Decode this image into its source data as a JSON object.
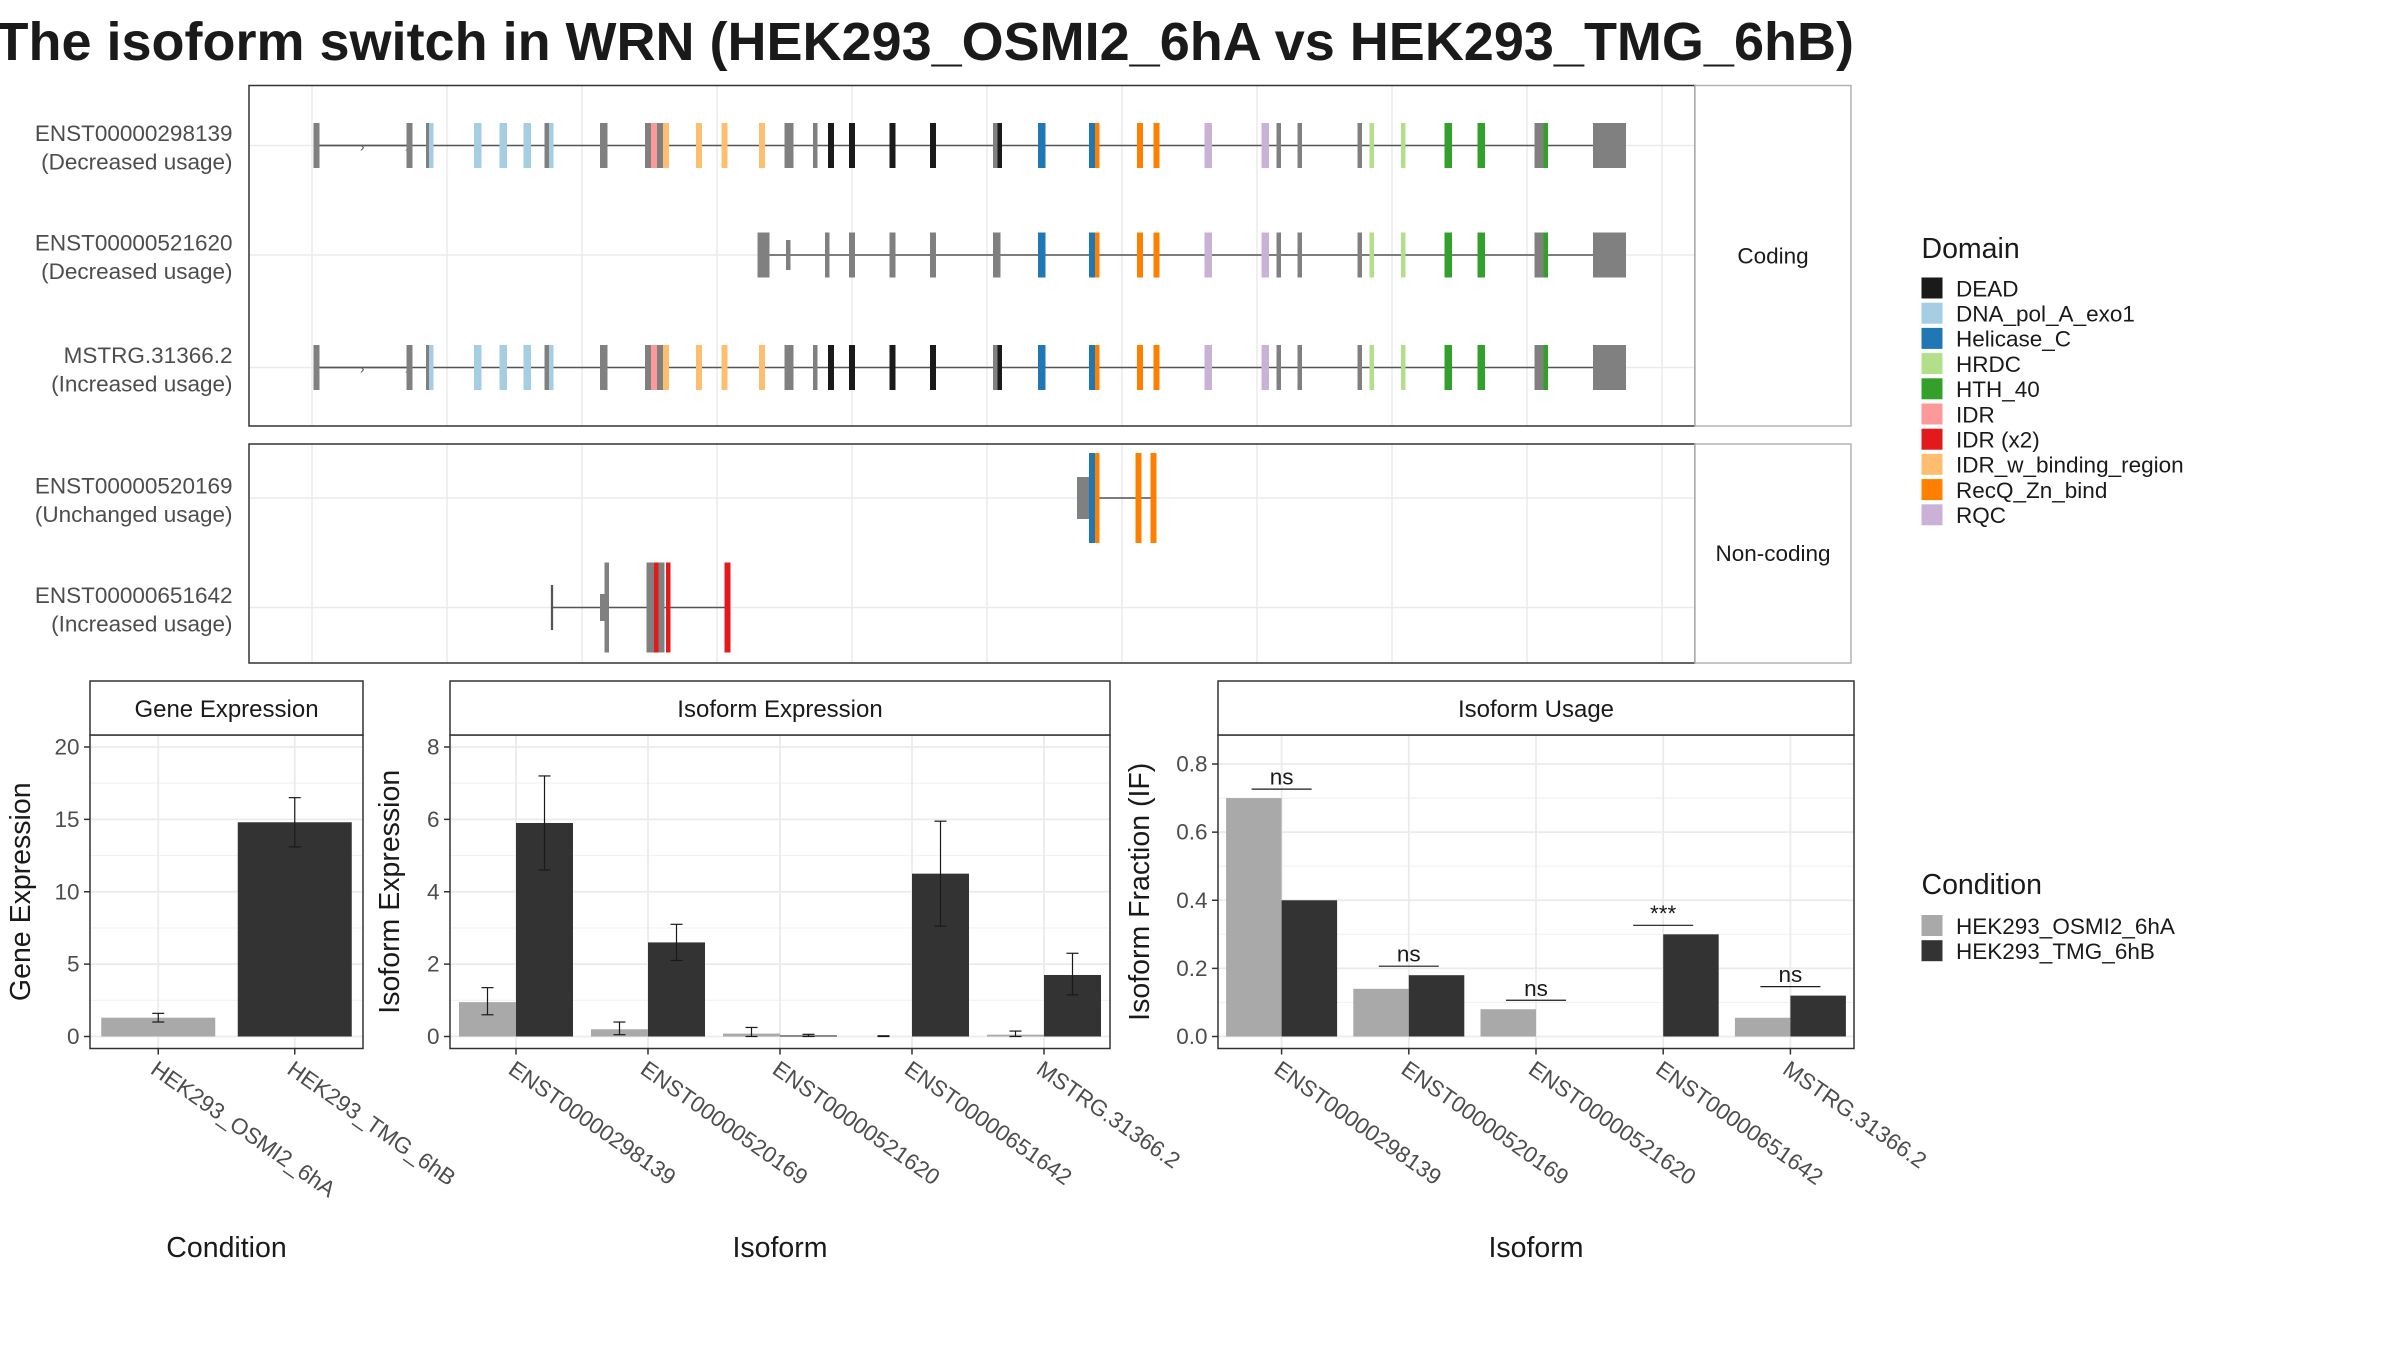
{
  "chart_data": [
    {
      "type": "table",
      "title": "The isoform switch in WRN (HEK293_OSMI2_6hA vs HEK293_TMG_6hB)",
      "panels": [
        {
          "strip": "Coding",
          "isoforms": [
            {
              "id": "ENST00000298139",
              "usage": "(Decreased usage)",
              "variant": "full"
            },
            {
              "id": "ENST00000521620",
              "usage": "(Decreased usage)",
              "variant": "short"
            },
            {
              "id": "MSTRG.31366.2",
              "usage": "(Increased usage)",
              "variant": "full"
            }
          ]
        },
        {
          "strip": "Non-coding",
          "isoforms": [
            {
              "id": "ENST00000520169",
              "usage": "(Unchanged usage)",
              "variant": "nc1"
            },
            {
              "id": "ENST00000651642",
              "usage": "(Increased usage)",
              "variant": "nc2"
            }
          ]
        }
      ],
      "legend": {
        "title": "Domain",
        "entries": [
          {
            "label": "DEAD",
            "color": "#1a1a1a"
          },
          {
            "label": "DNA_pol_A_exo1",
            "color": "#a6cee3"
          },
          {
            "label": "Helicase_C",
            "color": "#1f78b4"
          },
          {
            "label": "HRDC",
            "color": "#b2df8a"
          },
          {
            "label": "HTH_40",
            "color": "#33a02c"
          },
          {
            "label": "IDR",
            "color": "#fb9a99"
          },
          {
            "label": "IDR (x2)",
            "color": "#e31a1c"
          },
          {
            "label": "IDR_w_binding_region",
            "color": "#fdbf6f"
          },
          {
            "label": "RecQ_Zn_bind",
            "color": "#ff7f00"
          },
          {
            "label": "RQC",
            "color": "#cab2d6"
          }
        ]
      }
    },
    {
      "type": "bar",
      "strip": "Gene Expression",
      "xlabel": "Condition",
      "ylabel": "Gene Expression",
      "ylim": [
        0,
        20
      ],
      "yticks": [
        0,
        5,
        10,
        15,
        20
      ],
      "categories": [
        "HEK293_OSMI2_6hA",
        "HEK293_TMG_6hB"
      ],
      "values": [
        1.3,
        14.8
      ],
      "errors": [
        [
          1.0,
          1.6
        ],
        [
          13.1,
          16.5
        ]
      ],
      "grid": true
    },
    {
      "type": "bar",
      "strip": "Isoform Expression",
      "xlabel": "Isoform",
      "ylabel": "Isoform Expression",
      "ylim": [
        0,
        8
      ],
      "yticks": [
        0,
        2,
        4,
        6,
        8
      ],
      "categories": [
        "ENST00000298139",
        "ENST00000520169",
        "ENST00000521620",
        "ENST00000651642",
        "MSTRG.31366.2"
      ],
      "series": [
        {
          "name": "HEK293_OSMI2_6hA",
          "values": [
            0.95,
            0.2,
            0.08,
            0.0,
            0.05
          ],
          "errors": [
            [
              0.6,
              1.35
            ],
            [
              0.05,
              0.4
            ],
            [
              0.0,
              0.25
            ],
            [
              0.0,
              0.02
            ],
            [
              0.0,
              0.15
            ]
          ]
        },
        {
          "name": "HEK293_TMG_6hB",
          "values": [
            5.9,
            2.6,
            0.03,
            4.5,
            1.7
          ],
          "errors": [
            [
              4.6,
              7.2
            ],
            [
              2.1,
              3.1
            ],
            [
              0.0,
              0.06
            ],
            [
              3.05,
              5.95
            ],
            [
              1.15,
              2.3
            ]
          ]
        }
      ],
      "grid": true
    },
    {
      "type": "bar",
      "strip": "Isoform Usage",
      "xlabel": "Isoform",
      "ylabel": "Isoform Fraction (IF)",
      "ylim": [
        0,
        0.85
      ],
      "yticks": [
        "0.0",
        "0.2",
        "0.4",
        "0.6",
        "0.8"
      ],
      "categories": [
        "ENST00000298139",
        "ENST00000520169",
        "ENST00000521620",
        "ENST00000651642",
        "MSTRG.31366.2"
      ],
      "series": [
        {
          "name": "HEK293_OSMI2_6hA",
          "values": [
            0.7,
            0.14,
            0.08,
            0.0,
            0.055
          ]
        },
        {
          "name": "HEK293_TMG_6hB",
          "values": [
            0.4,
            0.18,
            0.0,
            0.3,
            0.12
          ]
        }
      ],
      "annotations": [
        "ns",
        "ns",
        "ns",
        "***",
        "ns"
      ],
      "grid": true
    },
    {
      "type": "table",
      "legend": {
        "title": "Condition",
        "entries": [
          {
            "label": "HEK293_OSMI2_6hA",
            "color": "#a9a9a9"
          },
          {
            "label": "HEK293_TMG_6hB",
            "color": "#333333"
          }
        ]
      }
    }
  ]
}
